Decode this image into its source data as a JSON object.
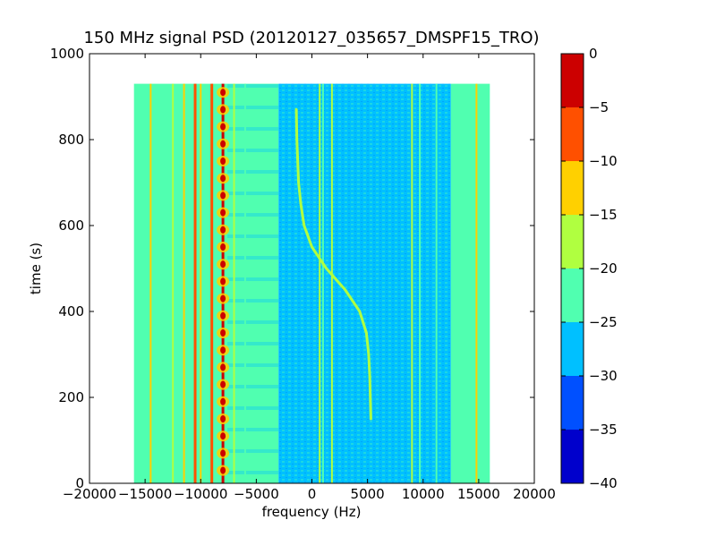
{
  "chart_data": {
    "type": "heatmap",
    "title": "150 MHz signal PSD (20120127_035657_DMSPF15_TRO)",
    "xlabel": "frequency (Hz)",
    "ylabel": "time (s)",
    "xlim": [
      -20000,
      20000
    ],
    "ylim": [
      0,
      1000
    ],
    "x_ticks": [
      -20000,
      -15000,
      -10000,
      -5000,
      0,
      5000,
      10000,
      15000,
      20000
    ],
    "x_tick_labels": [
      "−20000",
      "−15000",
      "−10000",
      "−5000",
      "0",
      "5000",
      "10000",
      "15000",
      "20000"
    ],
    "y_ticks": [
      0,
      200,
      400,
      600,
      800,
      1000
    ],
    "y_tick_labels": [
      "0",
      "200",
      "400",
      "600",
      "800",
      "1000"
    ],
    "data_extent": {
      "x": [
        -16000,
        16000
      ],
      "y": [
        0,
        930
      ]
    },
    "grid": false,
    "colorbar": {
      "range": [
        -40,
        0
      ],
      "levels": [
        -40,
        -35,
        -30,
        -25,
        -20,
        -15,
        -10,
        -5,
        0
      ],
      "tick_labels": [
        "−40",
        "−35",
        "−30",
        "−25",
        "−20",
        "−15",
        "−10",
        "−5",
        "0"
      ],
      "colors": [
        "#0000cc",
        "#0050ff",
        "#00c0ff",
        "#50ffb0",
        "#b0ff40",
        "#ffd000",
        "#ff5000",
        "#cc0000"
      ]
    },
    "background_regions": [
      {
        "x": [
          -16000,
          -3000
        ],
        "level": -22
      },
      {
        "x": [
          -3000,
          12500
        ],
        "level": -27
      },
      {
        "x": [
          12500,
          16000
        ],
        "level": -22
      }
    ],
    "vertical_lines": [
      {
        "x": -14500,
        "level": -12
      },
      {
        "x": -12500,
        "level": -17
      },
      {
        "x": -11500,
        "level": -12
      },
      {
        "x": -10500,
        "level": -8
      },
      {
        "x": -10000,
        "level": -12
      },
      {
        "x": -9000,
        "level": -8
      },
      {
        "x": -8000,
        "level": -3
      },
      {
        "x": -7000,
        "level": -17
      },
      {
        "x": -6000,
        "level": -22
      },
      {
        "x": 700,
        "level": -17
      },
      {
        "x": 1000,
        "level": -22
      },
      {
        "x": 1800,
        "level": -17
      },
      {
        "x": 9000,
        "level": -17
      },
      {
        "x": 9700,
        "level": -22
      },
      {
        "x": 11200,
        "level": -22
      },
      {
        "x": 14800,
        "level": -12
      }
    ],
    "doppler_trace": {
      "level": -17,
      "points": [
        {
          "t": 150,
          "f": 5300
        },
        {
          "t": 250,
          "f": 5200
        },
        {
          "t": 300,
          "f": 5100
        },
        {
          "t": 350,
          "f": 4900
        },
        {
          "t": 400,
          "f": 4300
        },
        {
          "t": 450,
          "f": 3000
        },
        {
          "t": 500,
          "f": 1300
        },
        {
          "t": 550,
          "f": 0
        },
        {
          "t": 600,
          "f": -700
        },
        {
          "t": 650,
          "f": -1000
        },
        {
          "t": 700,
          "f": -1200
        },
        {
          "t": 800,
          "f": -1350
        },
        {
          "t": 870,
          "f": -1400
        }
      ]
    }
  }
}
